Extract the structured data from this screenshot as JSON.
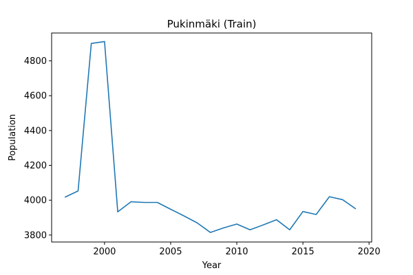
{
  "chart_data": {
    "type": "line",
    "title": "Pukinmäki (Train)",
    "xlabel": "Year",
    "ylabel": "Population",
    "xlim": [
      1996,
      2020.2
    ],
    "ylim": [
      3760,
      4960
    ],
    "xticks": [
      2000,
      2005,
      2010,
      2015,
      2020
    ],
    "yticks": [
      3800,
      4000,
      4200,
      4400,
      4600,
      4800
    ],
    "grid": false,
    "color": "#1f77b4",
    "series": [
      {
        "x": [
          1997,
          1998,
          1999,
          2000,
          2001,
          2002,
          2003,
          2004,
          2005,
          2006,
          2007,
          2008,
          2009,
          2010,
          2011,
          2012,
          2013,
          2014,
          2015,
          2016,
          2017,
          2018,
          2019
        ],
        "y": [
          4017,
          4053,
          4900,
          4911,
          3933,
          3991,
          3987,
          3987,
          3948,
          3910,
          3870,
          3815,
          3841,
          3863,
          3830,
          3858,
          3888,
          3830,
          3935,
          3918,
          4020,
          4003,
          3950
        ]
      }
    ]
  }
}
